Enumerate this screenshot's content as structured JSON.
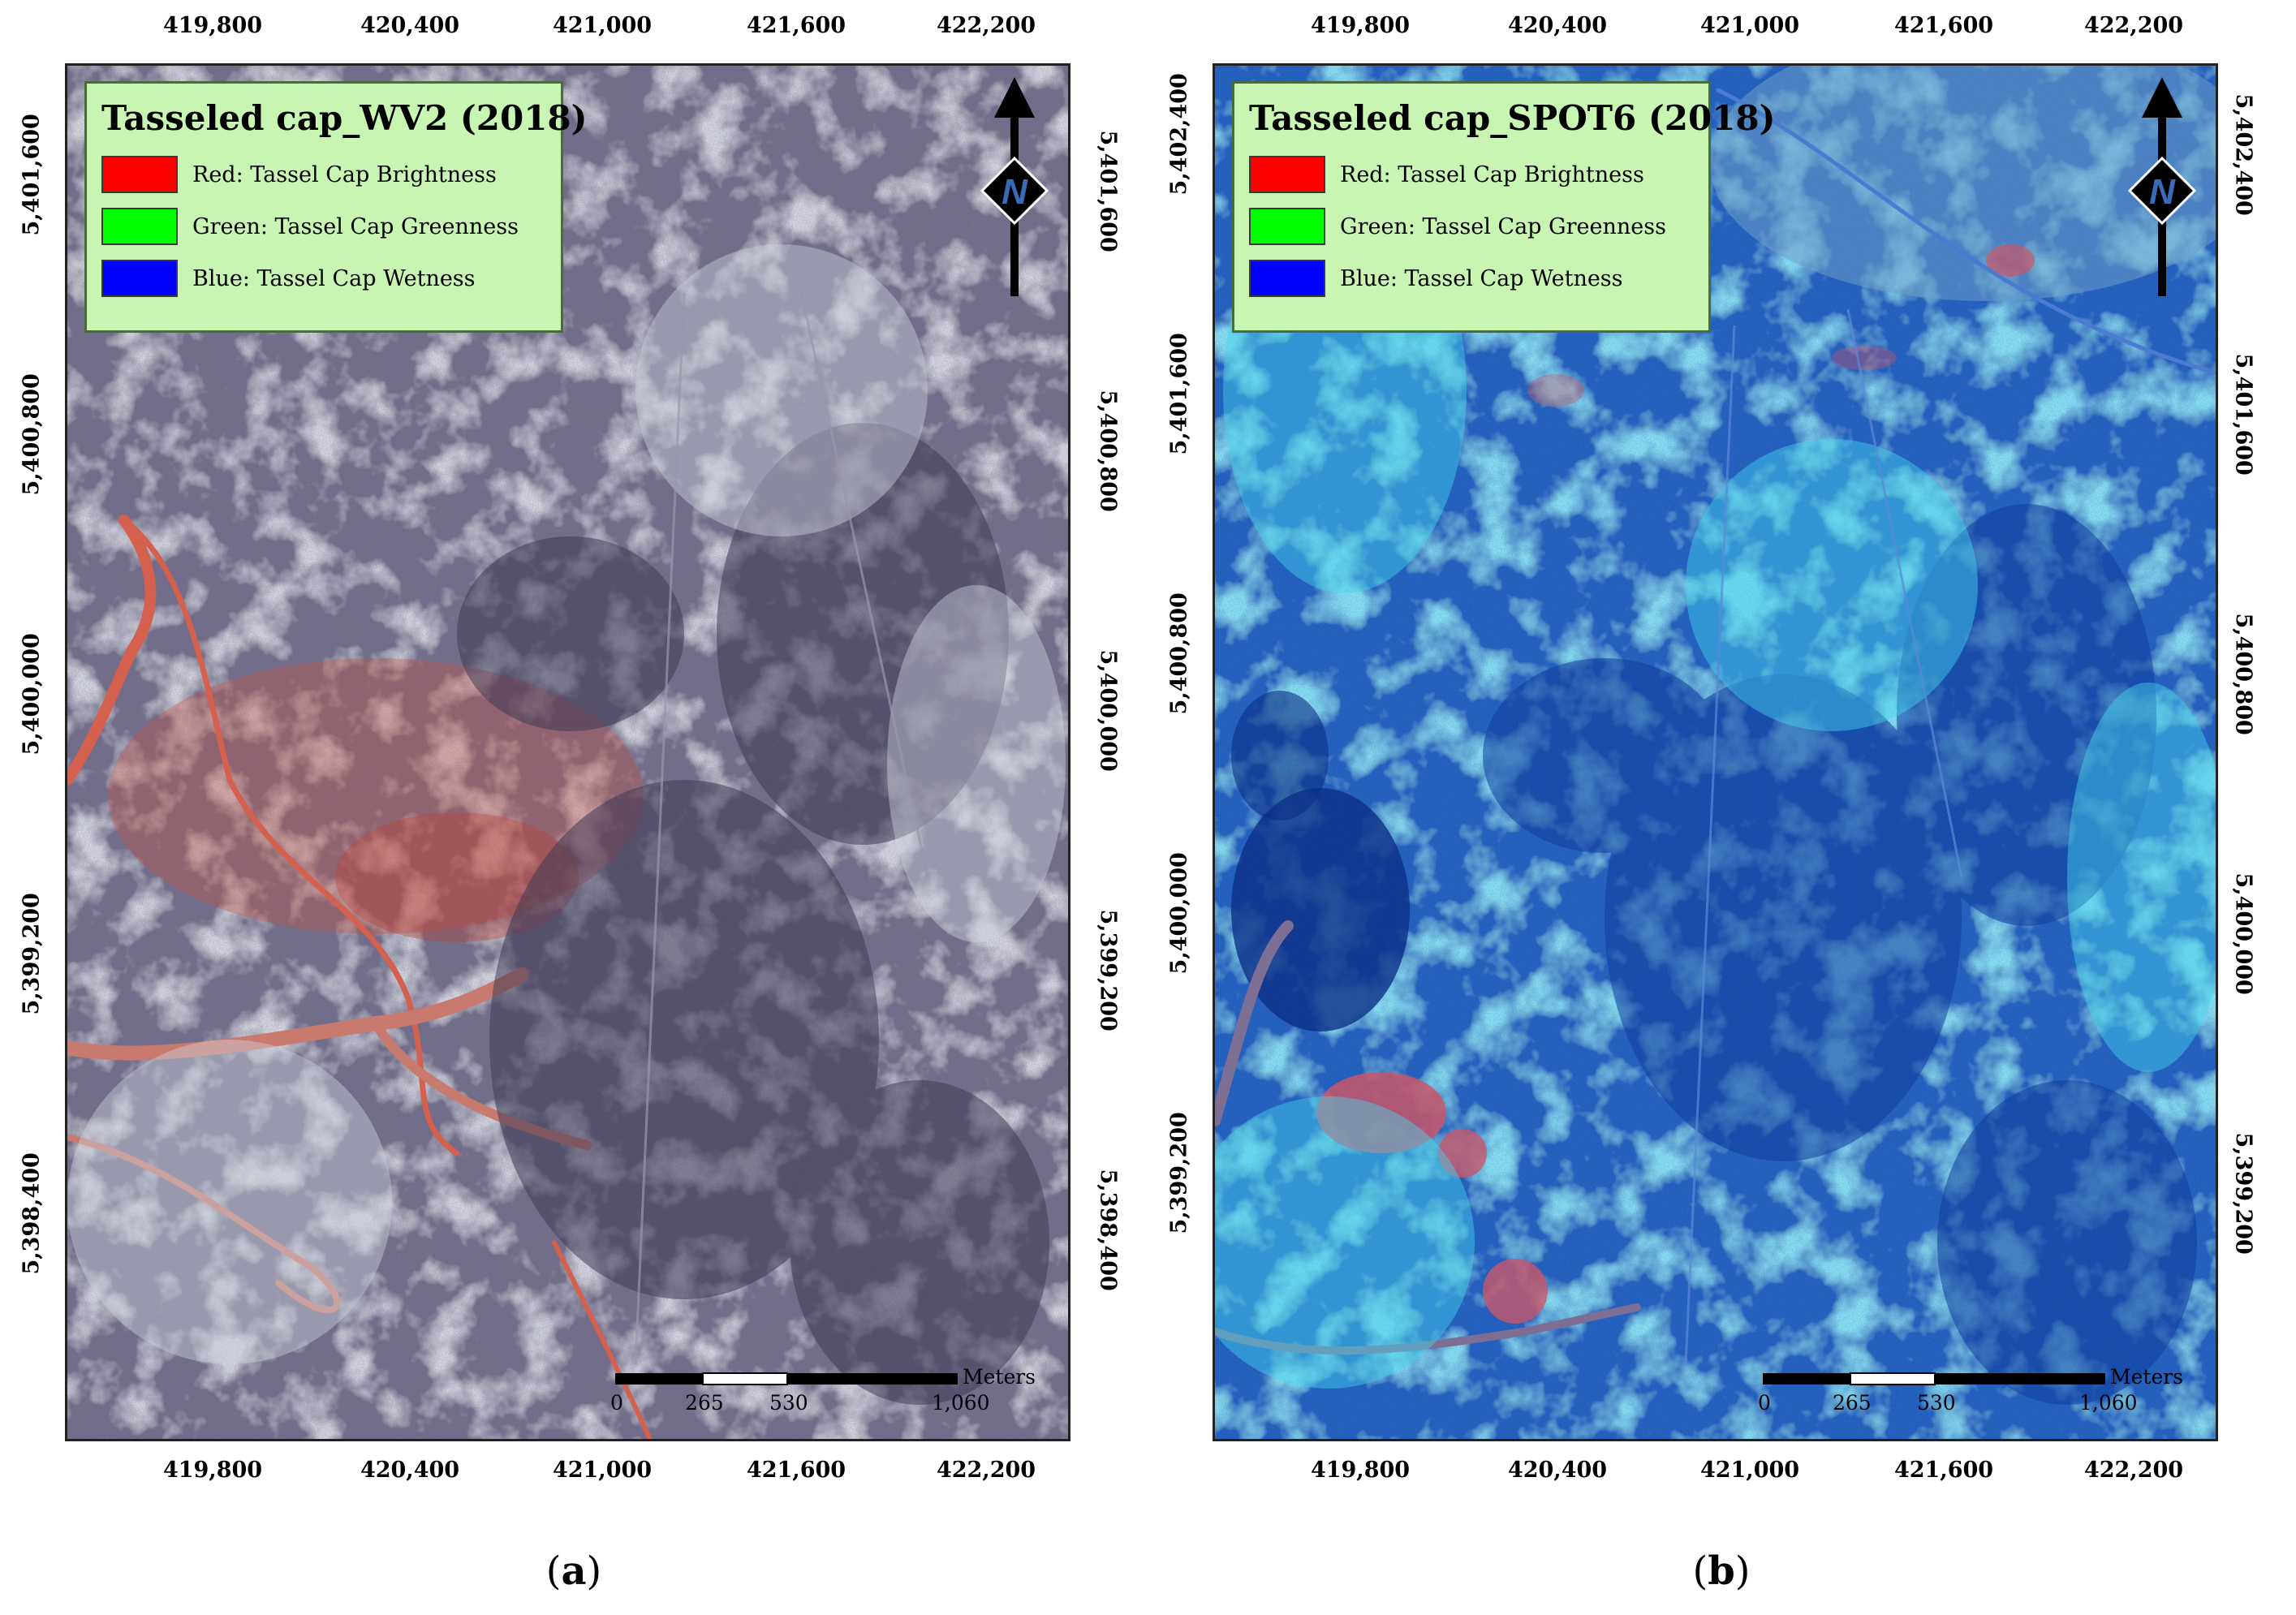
{
  "panels": [
    {
      "id": "a",
      "legend": {
        "title": "Tasseled cap_WV2 (2018)",
        "items": [
          {
            "label": "Red: Tassel Cap Brightness",
            "color": "#ff0000"
          },
          {
            "label": "Green: Tassel Cap Greenness",
            "color": "#00ff00"
          },
          {
            "label": "Blue: Tassel Cap Wetness",
            "color": "#0000ff"
          }
        ]
      },
      "x_ticks": [
        "419,800",
        "420,400",
        "421,000",
        "421,600",
        "422,200"
      ],
      "y_ticks_left": [
        "5,401,600",
        "5,400,800",
        "5,400,000",
        "5,399,200",
        "5,398,400"
      ],
      "y_ticks_right": [
        "5,401,600",
        "5,400,800",
        "5,400,000",
        "5,399,200",
        "5,398,400"
      ],
      "north_label": "N",
      "scale": {
        "labels": [
          "0",
          "265",
          "530",
          "1,060"
        ],
        "unit": "Meters"
      },
      "caption_letter": "a",
      "imagery_palette": {
        "base": "#7e7a92",
        "light": "#c9cdd6",
        "dark": "#4a4660",
        "accent": "#d2503c"
      }
    },
    {
      "id": "b",
      "legend": {
        "title": "Tasseled cap_SPOT6 (2018)",
        "items": [
          {
            "label": "Red: Tassel Cap Brightness",
            "color": "#ff0000"
          },
          {
            "label": "Green: Tassel Cap Greenness",
            "color": "#00ff00"
          },
          {
            "label": "Blue: Tassel Cap Wetness",
            "color": "#0000ff"
          }
        ]
      },
      "x_ticks": [
        "419,800",
        "420,400",
        "421,000",
        "421,600",
        "422,200"
      ],
      "y_ticks_left": [
        "5,402,400",
        "5,401,600",
        "5,400,800",
        "5,400,000",
        "5,399,200"
      ],
      "y_ticks_right": [
        "5,402,400",
        "5,401,600",
        "5,400,800",
        "5,400,000",
        "5,399,200"
      ],
      "north_label": "N",
      "scale": {
        "labels": [
          "0",
          "265",
          "530",
          "1,060"
        ],
        "unit": "Meters"
      },
      "caption_letter": "b",
      "imagery_palette": {
        "base": "#1f5fc0",
        "light": "#3fd0e8",
        "dark": "#0f3a98",
        "accent": "#c05060"
      }
    }
  ]
}
